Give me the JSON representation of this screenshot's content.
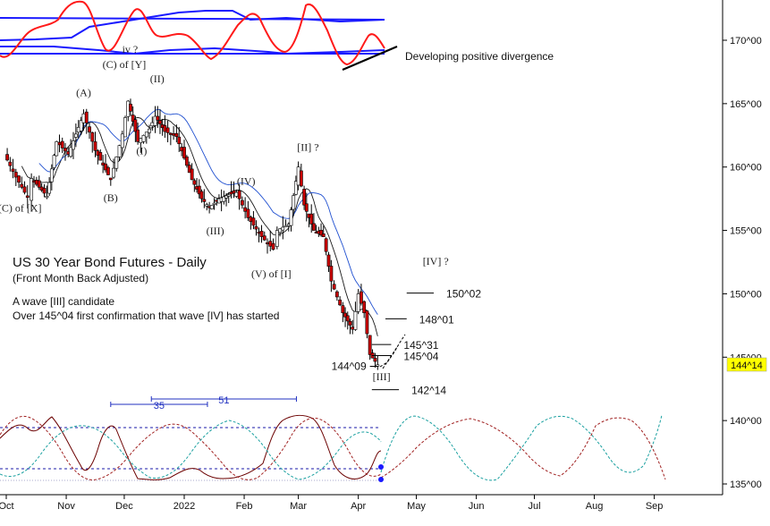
{
  "chart_data": {
    "type": "candlestick",
    "title": "US 30 Year Bond Futures - Daily",
    "subtitle": "(Front Month Back Adjusted)",
    "notes": [
      "A wave [III] candidate",
      "Over 145^04 first confirmation that wave [IV] has started"
    ],
    "x_ticks": [
      "Oct",
      "Nov",
      "Dec",
      "2022",
      "Feb",
      "Mar",
      "Apr",
      "May",
      "Jun",
      "Jul",
      "Aug",
      "Sep"
    ],
    "y_ticks": [
      "135^00",
      "140^00",
      "145^00",
      "150^00",
      "155^00",
      "160^00",
      "165^00",
      "170^00"
    ],
    "ylim": [
      134.5,
      173
    ],
    "last_price": "144^14",
    "price_path": [
      [
        "2021-09-30",
        161.0
      ],
      [
        "2021-10-06",
        159.2
      ],
      [
        "2021-10-12",
        157.6
      ],
      [
        "2021-10-14",
        159.1
      ],
      [
        "2021-10-22",
        157.7
      ],
      [
        "2021-10-27",
        162.0
      ],
      [
        "2021-11-02",
        161.0
      ],
      [
        "2021-11-10",
        164.2
      ],
      [
        "2021-11-16",
        161.3
      ],
      [
        "2021-11-24",
        159.0
      ],
      [
        "2021-11-30",
        162.6
      ],
      [
        "2021-12-03",
        165.2
      ],
      [
        "2021-12-08",
        162.0
      ],
      [
        "2021-12-14",
        163.0
      ],
      [
        "2021-12-17",
        164.0
      ],
      [
        "2021-12-22",
        162.8
      ],
      [
        "2021-12-28",
        162.4
      ],
      [
        "2022-01-05",
        159.0
      ],
      [
        "2022-01-10",
        157.5
      ],
      [
        "2022-01-14",
        156.8
      ],
      [
        "2022-01-19",
        157.5
      ],
      [
        "2022-01-24",
        157.8
      ],
      [
        "2022-01-28",
        158.0
      ],
      [
        "2022-02-03",
        156.0
      ],
      [
        "2022-02-10",
        154.5
      ],
      [
        "2022-02-16",
        153.5
      ],
      [
        "2022-02-18",
        155.0
      ],
      [
        "2022-02-24",
        155.5
      ],
      [
        "2022-03-01",
        160.0
      ],
      [
        "2022-03-04",
        157.0
      ],
      [
        "2022-03-09",
        155.0
      ],
      [
        "2022-03-14",
        154.5
      ],
      [
        "2022-03-18",
        151.0
      ],
      [
        "2022-03-24",
        148.5
      ],
      [
        "2022-03-29",
        147.2
      ],
      [
        "2022-04-01",
        150.0
      ],
      [
        "2022-04-04",
        148.5
      ],
      [
        "2022-04-07",
        145.2
      ],
      [
        "2022-04-11",
        144.4
      ]
    ],
    "moving_averages": [
      "black",
      "blue"
    ],
    "wave_labels": [
      {
        "text": "(C) of [X]",
        "date": "2021-10-08",
        "price": 156.5
      },
      {
        "text": "(A)",
        "date": "2021-11-10",
        "price": 165.6
      },
      {
        "text": "(B)",
        "date": "2021-11-24",
        "price": 157.3
      },
      {
        "text": "(C) of [Y]",
        "date": "2021-12-01",
        "price": 167.8
      },
      {
        "text": "iv ?",
        "date": "2021-12-04",
        "price": 169.0
      },
      {
        "text": "(II)",
        "date": "2021-12-18",
        "price": 166.7
      },
      {
        "text": "(I)",
        "date": "2021-12-10",
        "price": 161.0
      },
      {
        "text": "(III)",
        "date": "2022-01-17",
        "price": 154.7
      },
      {
        "text": "(IV)",
        "date": "2022-02-02",
        "price": 158.6
      },
      {
        "text": "(V) of [I]",
        "date": "2022-02-15",
        "price": 151.3
      },
      {
        "text": "[II] ?",
        "date": "2022-03-06",
        "price": 161.3
      },
      {
        "text": "[IV] ?",
        "date": "2022-05-11",
        "price": 152.3
      },
      {
        "text": "[III]",
        "date": "2022-04-13",
        "price": 143.2
      }
    ],
    "price_levels": [
      {
        "label": "150^02",
        "price": 150.06,
        "from": "2022-04-26",
        "to": "2022-05-10"
      },
      {
        "label": "148^01",
        "price": 148.03,
        "from": "2022-04-15",
        "to": "2022-04-26"
      },
      {
        "label": "145^31",
        "price": 146.0,
        "from": "2022-04-08",
        "to": "2022-04-18"
      },
      {
        "label": "145^04",
        "price": 145.13,
        "from": "2022-04-08",
        "to": "2022-04-18"
      },
      {
        "label": "144^09",
        "price": 144.28,
        "from": "2022-04-07",
        "to": "2022-04-11"
      },
      {
        "label": "142^14",
        "price": 142.44,
        "from": "2022-04-08",
        "to": "2022-04-22"
      }
    ],
    "oscillator": {
      "annotation": "Developing positive divergence",
      "band_colors": [
        "blue",
        "red"
      ]
    },
    "cycles": {
      "spans": [
        {
          "label": "35",
          "from": "2021-11-24",
          "to": "2022-01-13"
        },
        {
          "label": "51",
          "from": "2021-12-15",
          "to": "2022-02-28"
        }
      ],
      "projection_colors": [
        "#1aa0a0",
        "#a02020"
      ]
    }
  }
}
